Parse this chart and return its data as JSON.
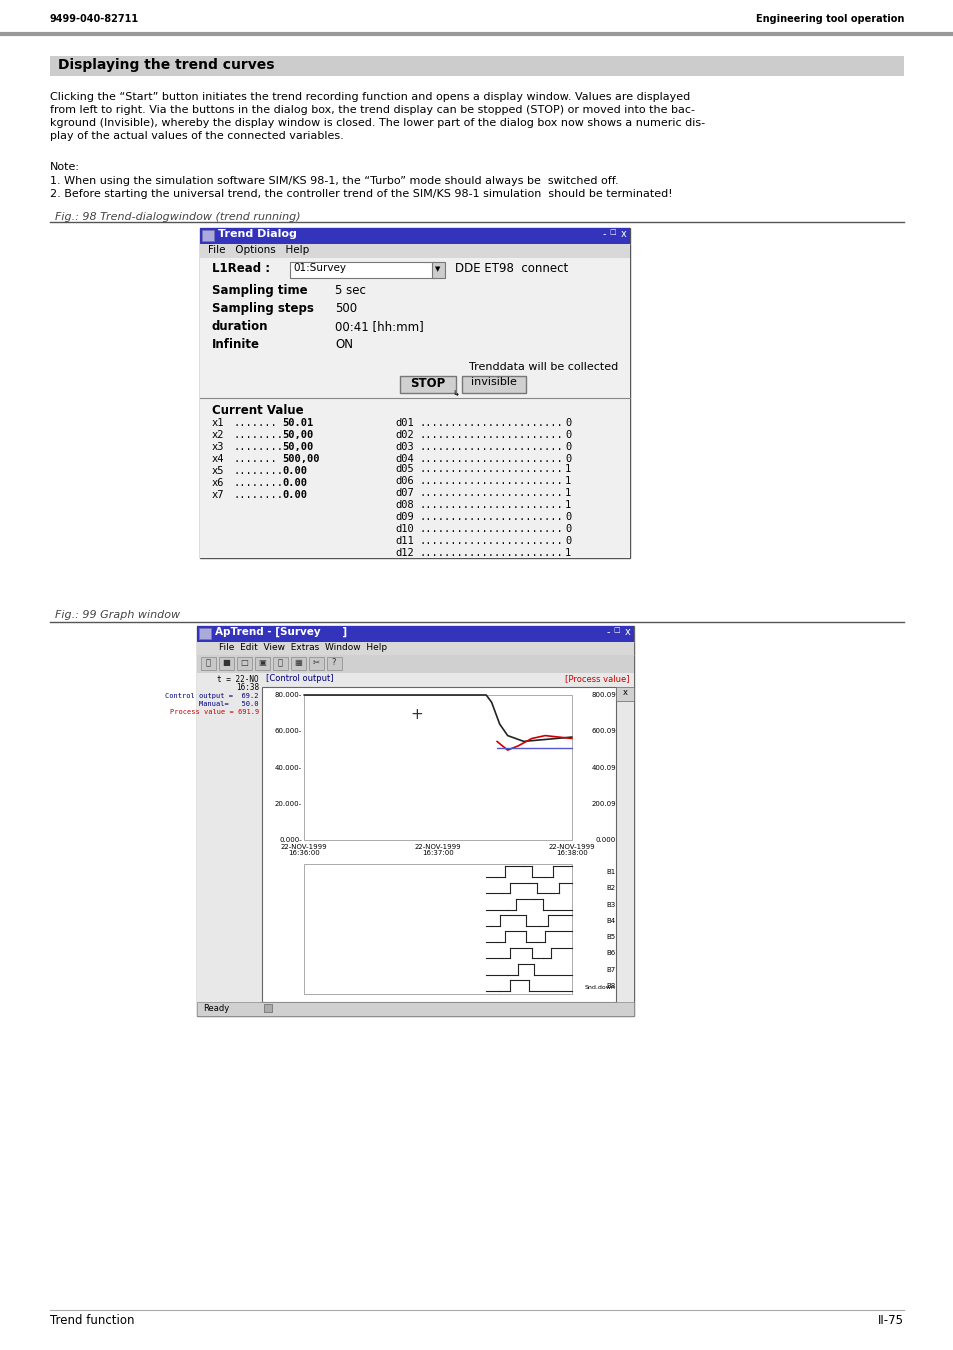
{
  "page_number_left": "9499-040-82711",
  "page_number_right": "Engineering tool operation",
  "title": "Displaying the trend curves",
  "body_lines": [
    "Clicking the “Start” button initiates the trend recording function and opens a display window. Values are displayed",
    "from left to right. Via the buttons in the dialog box, the trend display can be stopped (STOP) or moved into the bac‑",
    "kground (Invisible), whereby the display window is closed. The lower part of the dialog box now shows a numeric dis‑",
    "play of the actual values of the connected variables."
  ],
  "note_label": "Note:",
  "note_1": "1. When using the simulation software SIM/KS 98-1, the “Turbo” mode should always be  switched off.",
  "note_2": "2. Before starting the universal trend, the controller trend of the SIM/KS 98-1 simulation  should be terminated!",
  "fig98_caption": "Fig.: 98 Trend-dialogwindow (trend running)",
  "fig99_caption": "Fig.: 99 Graph window",
  "footer_left": "Trend function",
  "footer_right": "II-75",
  "header_bar_color": "#999999",
  "title_bg_color": "#cccccc",
  "dialog_title_bg": "#3333bb",
  "dialog_title_text": "Trend Dialog",
  "dialog_menu": "File   Options   Help",
  "dialog_l1read_label": "L1Read :",
  "dialog_l1read_value": "01:Survey",
  "dialog_dde": "DDE ET98  connect",
  "dialog_sampling_time_label": "Sampling time",
  "dialog_sampling_time_value": "5 sec",
  "dialog_sampling_steps_label": "Sampling steps",
  "dialog_sampling_steps_value": "500",
  "dialog_duration_label": "duration",
  "dialog_duration_value": "00:41 [hh:mm]",
  "dialog_infinite_label": "Infinite",
  "dialog_infinite_value": "ON",
  "dialog_trenddata_text": "Trenddata will be collected",
  "dialog_stop_btn": "STOP",
  "dialog_invisible_btn": "invisible",
  "dialog_current_value": "Current Value",
  "dialog_x_values": [
    [
      "x1",
      ".......",
      "50.01"
    ],
    [
      "x2",
      "........",
      "50,00"
    ],
    [
      "x3",
      "........",
      "50,00"
    ],
    [
      "x4",
      ".......",
      "500,00"
    ],
    [
      "x5",
      "........",
      "0.00"
    ],
    [
      "x6",
      "........",
      "0.00"
    ],
    [
      "x7",
      "........",
      "0.00"
    ]
  ],
  "dialog_d_values": [
    [
      "d01",
      ".......................",
      "0"
    ],
    [
      "d02",
      ".......................",
      "0"
    ],
    [
      "d03",
      ".......................",
      "0"
    ],
    [
      "d04",
      ".......................",
      "0"
    ],
    [
      "d05",
      ".......................",
      "1"
    ],
    [
      "d06",
      ".......................",
      "1"
    ],
    [
      "d07",
      ".......................",
      "1"
    ],
    [
      "d08",
      ".......................",
      "1"
    ],
    [
      "d09",
      ".......................",
      "0"
    ],
    [
      "d10",
      ".......................",
      "0"
    ],
    [
      "d11",
      ".......................",
      "0"
    ],
    [
      "d12",
      ".......................",
      "1"
    ]
  ],
  "graph_title_text": "ApTrend - [Survey      ]",
  "graph_menu": "File  Edit  View  Extras  Window  Help",
  "graph_y_labels_left": [
    "80.000-",
    "60.000-",
    "40.000-",
    "20.000-",
    "0.000-"
  ],
  "graph_y_labels_right": [
    "800.09",
    "600.09",
    "400.09",
    "200.09",
    "0.000"
  ],
  "graph_x_labels": [
    "22-NOV-1999\n16:36:00",
    "22-NOV-1999\n16:37:00",
    "22-NOV-1999\n16:38:00"
  ],
  "graph_top_ctrl_color": "#000080",
  "graph_top_pv_color": "#cc0000",
  "graph_top_pv_label": "[Process value]",
  "graph_ctrl_label": "[Control output]",
  "graph_top_left_line1": "t = 22-NO",
  "graph_top_left_line2": "16:38",
  "graph_ctrl_val": "Control output =  69.2",
  "graph_manual_val": "Manual=   50.0",
  "graph_pv_val": "Process value = 691.9"
}
